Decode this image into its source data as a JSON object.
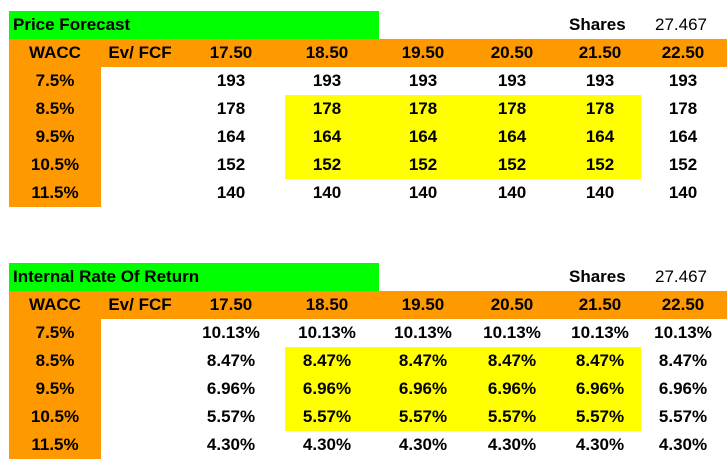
{
  "colors": {
    "title_bg": "#00ff00",
    "header_bg": "#ff9900",
    "highlight_bg": "#ffff00"
  },
  "price_table": {
    "title": "Price Forecast",
    "shares_label": "Shares",
    "shares_value": "27.467",
    "corner_labels": [
      "WACC",
      "Ev/ FCF"
    ],
    "columns": [
      "17.50",
      "18.50",
      "19.50",
      "20.50",
      "21.50",
      "22.50"
    ],
    "rows": [
      {
        "wacc": "7.5%",
        "values": [
          "193",
          "193",
          "193",
          "193",
          "193",
          "193"
        ]
      },
      {
        "wacc": "8.5%",
        "values": [
          "178",
          "178",
          "178",
          "178",
          "178",
          "178"
        ]
      },
      {
        "wacc": "9.5%",
        "values": [
          "164",
          "164",
          "164",
          "164",
          "164",
          "164"
        ]
      },
      {
        "wacc": "10.5%",
        "values": [
          "152",
          "152",
          "152",
          "152",
          "152",
          "152"
        ]
      },
      {
        "wacc": "11.5%",
        "values": [
          "140",
          "140",
          "140",
          "140",
          "140",
          "140"
        ]
      }
    ]
  },
  "irr_table": {
    "title": "Internal Rate Of Return",
    "shares_label": "Shares",
    "shares_value": "27.467",
    "corner_labels": [
      "WACC",
      "Ev/ FCF"
    ],
    "columns": [
      "17.50",
      "18.50",
      "19.50",
      "20.50",
      "21.50",
      "22.50"
    ],
    "rows": [
      {
        "wacc": "7.5%",
        "values": [
          "10.13%",
          "10.13%",
          "10.13%",
          "10.13%",
          "10.13%",
          "10.13%"
        ]
      },
      {
        "wacc": "8.5%",
        "values": [
          "8.47%",
          "8.47%",
          "8.47%",
          "8.47%",
          "8.47%",
          "8.47%"
        ]
      },
      {
        "wacc": "9.5%",
        "values": [
          "6.96%",
          "6.96%",
          "6.96%",
          "6.96%",
          "6.96%",
          "6.96%"
        ]
      },
      {
        "wacc": "10.5%",
        "values": [
          "5.57%",
          "5.57%",
          "5.57%",
          "5.57%",
          "5.57%",
          "5.57%"
        ]
      },
      {
        "wacc": "11.5%",
        "values": [
          "4.30%",
          "4.30%",
          "4.30%",
          "4.30%",
          "4.30%",
          "4.30%"
        ]
      }
    ]
  }
}
